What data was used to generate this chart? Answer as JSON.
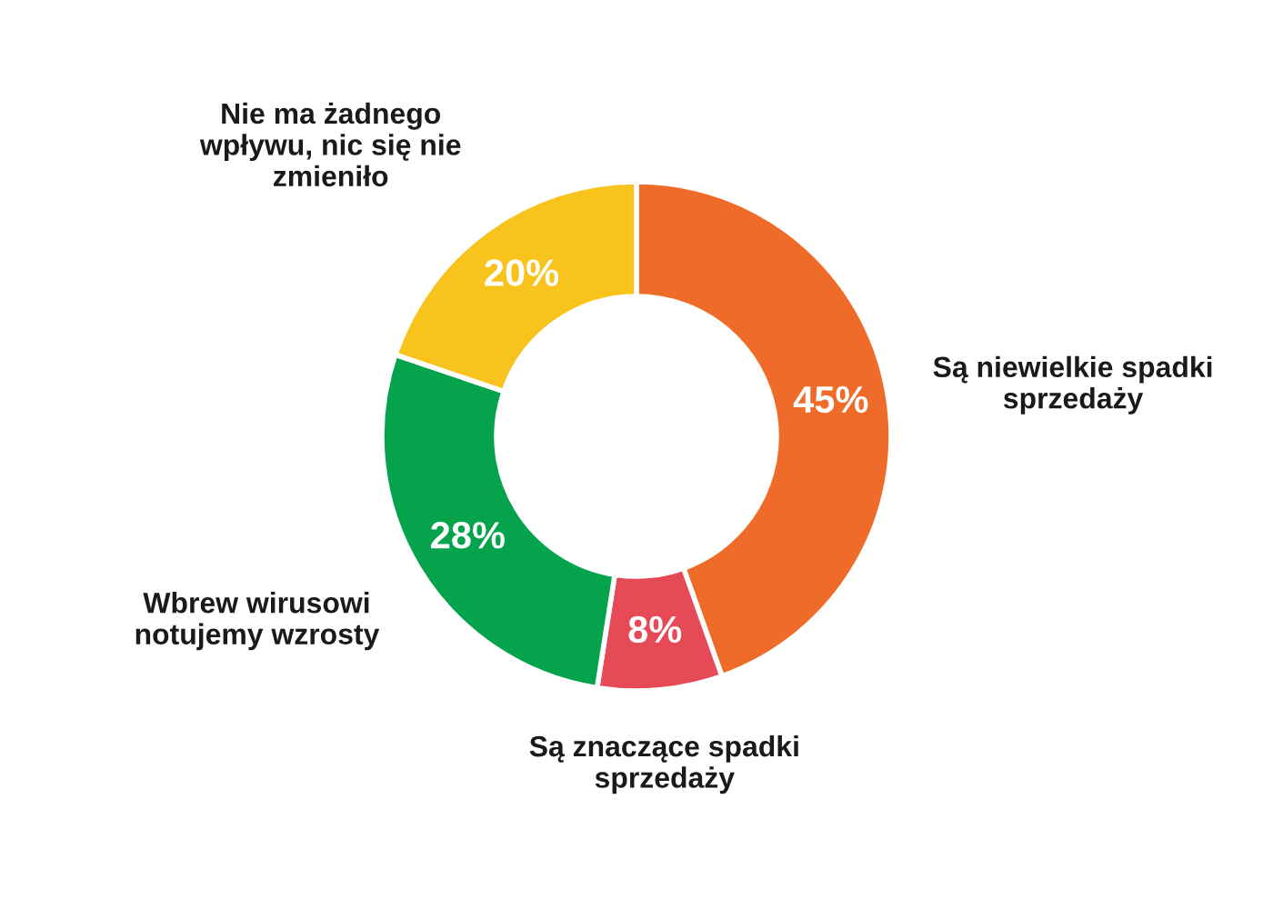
{
  "chart_data": {
    "type": "donut",
    "categories": [
      "Są niewielkie spadki\nsprzedaży",
      "Są znaczące spadki\nsprzedaży",
      "Wbrew wirusowi\nnotujemy wzrosty",
      "Nie ma żadnego\nwpływu, nic się nie\nzmieniło"
    ],
    "values": [
      45,
      8,
      28,
      20
    ],
    "colors": [
      "#ef6b2a",
      "#e64a57",
      "#05a34c",
      "#f7c31c"
    ],
    "value_labels": [
      "45%",
      "8%",
      "28%",
      "20%"
    ]
  }
}
